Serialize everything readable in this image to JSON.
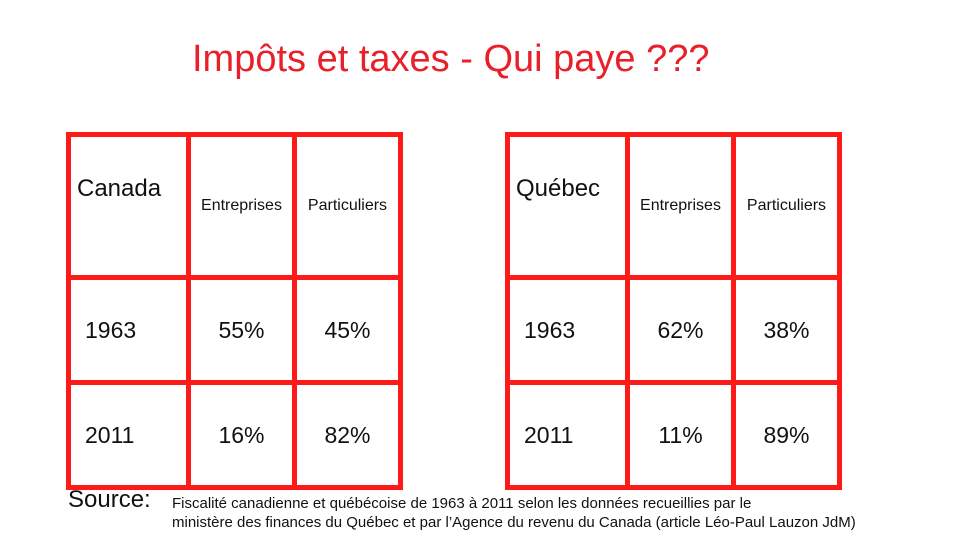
{
  "title": "Impôts et taxes - Qui paye ???",
  "tables": [
    {
      "region": "Canada",
      "columns": [
        "Entreprises",
        "Particuliers"
      ],
      "rows": [
        {
          "year": "1963",
          "values": [
            "55%",
            "45%"
          ]
        },
        {
          "year": "2011",
          "values": [
            "16%",
            "82%"
          ]
        }
      ]
    },
    {
      "region": "Québec",
      "columns": [
        "Entreprises",
        "Particuliers"
      ],
      "rows": [
        {
          "year": "1963",
          "values": [
            "62%",
            "38%"
          ]
        },
        {
          "year": "2011",
          "values": [
            "11%",
            "89%"
          ]
        }
      ]
    }
  ],
  "source": {
    "label": "Source:",
    "line1": "Fiscalité canadienne et québécoise de 1963 à 2011 selon les données recueillies par le",
    "line2": "ministère des finances du Québec et par l’Agence du revenu du Canada (article Léo-Paul Lauzon JdM)"
  },
  "colors": {
    "accent": "#e8202a",
    "grid": "#ff1a1a"
  }
}
